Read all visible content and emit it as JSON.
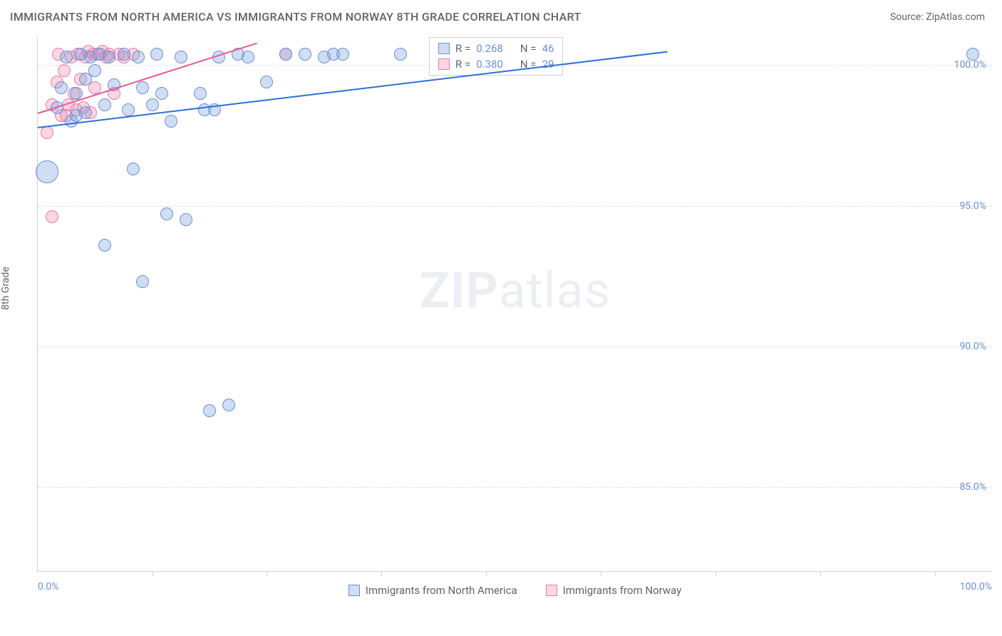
{
  "header": {
    "title": "IMMIGRANTS FROM NORTH AMERICA VS IMMIGRANTS FROM NORWAY 8TH GRADE CORRELATION CHART",
    "source": "Source: ZipAtlas.com"
  },
  "chart": {
    "type": "scatter",
    "ylabel": "8th Grade",
    "xlim": [
      0,
      100
    ],
    "ylim": [
      82,
      101
    ],
    "background_color": "#ffffff",
    "grid_color": "#e0e0e0",
    "axis_color": "#d0d0d0",
    "tick_label_color": "#6a8fd8",
    "label_color": "#5f6368",
    "yticks": [
      {
        "value": 85,
        "label": "85.0%"
      },
      {
        "value": 90,
        "label": "90.0%"
      },
      {
        "value": 95,
        "label": "95.0%"
      },
      {
        "value": 100,
        "label": "100.0%"
      }
    ],
    "xticks_minor": [
      12,
      24,
      36,
      47,
      59,
      71,
      82,
      94
    ],
    "xtick_labels": [
      {
        "value": 0,
        "label": "0.0%"
      },
      {
        "value": 100,
        "label": "100.0%"
      }
    ],
    "watermark": {
      "zip": "ZIP",
      "rest": "atlas"
    },
    "series_a": {
      "name": "Immigrants from North America",
      "fill": "rgba(120,160,220,0.35)",
      "stroke": "#6a8fd8",
      "trend_color": "#2e6fd6",
      "marker_radius": 9,
      "r_label": "R =",
      "r_value": "0.268",
      "n_label": "N =",
      "n_value": "46",
      "trend": {
        "x1": 0,
        "y1": 97.8,
        "x2": 66,
        "y2": 100.5
      },
      "points": [
        {
          "x": 1,
          "y": 96.2,
          "r": 16
        },
        {
          "x": 2,
          "y": 98.5
        },
        {
          "x": 2.5,
          "y": 99.2
        },
        {
          "x": 3,
          "y": 100.3
        },
        {
          "x": 3.5,
          "y": 98.0
        },
        {
          "x": 4,
          "y": 99.0
        },
        {
          "x": 4,
          "y": 98.2
        },
        {
          "x": 4.5,
          "y": 100.4
        },
        {
          "x": 5,
          "y": 99.5
        },
        {
          "x": 5,
          "y": 98.3
        },
        {
          "x": 5.5,
          "y": 100.3
        },
        {
          "x": 6,
          "y": 99.8
        },
        {
          "x": 6.5,
          "y": 100.4
        },
        {
          "x": 7,
          "y": 98.6
        },
        {
          "x": 7.5,
          "y": 100.3
        },
        {
          "x": 7,
          "y": 93.6
        },
        {
          "x": 8,
          "y": 99.3
        },
        {
          "x": 9,
          "y": 100.4
        },
        {
          "x": 9.5,
          "y": 98.4
        },
        {
          "x": 10,
          "y": 96.3
        },
        {
          "x": 10.5,
          "y": 100.3
        },
        {
          "x": 11,
          "y": 99.2
        },
        {
          "x": 11,
          "y": 92.3
        },
        {
          "x": 12,
          "y": 98.6
        },
        {
          "x": 12.5,
          "y": 100.4
        },
        {
          "x": 13,
          "y": 99.0
        },
        {
          "x": 13.5,
          "y": 94.7
        },
        {
          "x": 14,
          "y": 98.0
        },
        {
          "x": 15,
          "y": 100.3
        },
        {
          "x": 15.5,
          "y": 94.5
        },
        {
          "x": 17,
          "y": 99.0
        },
        {
          "x": 17.5,
          "y": 98.4
        },
        {
          "x": 18,
          "y": 87.7
        },
        {
          "x": 18.5,
          "y": 98.4
        },
        {
          "x": 19,
          "y": 100.3
        },
        {
          "x": 20,
          "y": 87.9
        },
        {
          "x": 21,
          "y": 100.4
        },
        {
          "x": 22,
          "y": 100.3
        },
        {
          "x": 24,
          "y": 99.4
        },
        {
          "x": 26,
          "y": 100.4
        },
        {
          "x": 28,
          "y": 100.4
        },
        {
          "x": 30,
          "y": 100.3
        },
        {
          "x": 31,
          "y": 100.4
        },
        {
          "x": 32,
          "y": 100.4
        },
        {
          "x": 38,
          "y": 100.4
        },
        {
          "x": 98,
          "y": 100.4
        }
      ]
    },
    "series_b": {
      "name": "Immigrants from Norway",
      "fill": "rgba(240,140,175,0.35)",
      "stroke": "#e97ba5",
      "trend_color": "#e85a8f",
      "marker_radius": 9,
      "r_label": "R =",
      "r_value": "0.380",
      "n_label": "N =",
      "n_value": "29",
      "trend": {
        "x1": 0,
        "y1": 98.3,
        "x2": 23,
        "y2": 100.8
      },
      "points": [
        {
          "x": 1,
          "y": 97.6
        },
        {
          "x": 1.5,
          "y": 98.6
        },
        {
          "x": 2,
          "y": 99.4
        },
        {
          "x": 1.5,
          "y": 94.6
        },
        {
          "x": 2.2,
          "y": 100.4
        },
        {
          "x": 2.5,
          "y": 98.2
        },
        {
          "x": 2.8,
          "y": 99.8
        },
        {
          "x": 3,
          "y": 98.2
        },
        {
          "x": 3.2,
          "y": 98.6
        },
        {
          "x": 3.5,
          "y": 100.3
        },
        {
          "x": 3.8,
          "y": 99.0
        },
        {
          "x": 4,
          "y": 98.4
        },
        {
          "x": 4.2,
          "y": 100.4
        },
        {
          "x": 4.5,
          "y": 99.5
        },
        {
          "x": 4.8,
          "y": 98.5
        },
        {
          "x": 5,
          "y": 100.3
        },
        {
          "x": 5.3,
          "y": 100.5
        },
        {
          "x": 5.5,
          "y": 98.3
        },
        {
          "x": 5.8,
          "y": 100.4
        },
        {
          "x": 6,
          "y": 99.2
        },
        {
          "x": 6.3,
          "y": 100.4
        },
        {
          "x": 6.8,
          "y": 100.5
        },
        {
          "x": 7.2,
          "y": 100.3
        },
        {
          "x": 7.5,
          "y": 100.4
        },
        {
          "x": 8,
          "y": 99.0
        },
        {
          "x": 8.5,
          "y": 100.4
        },
        {
          "x": 9,
          "y": 100.3
        },
        {
          "x": 10,
          "y": 100.4
        },
        {
          "x": 26,
          "y": 100.4
        }
      ]
    }
  },
  "bottom_legend": {
    "a": "Immigrants from North America",
    "b": "Immigrants from Norway"
  }
}
